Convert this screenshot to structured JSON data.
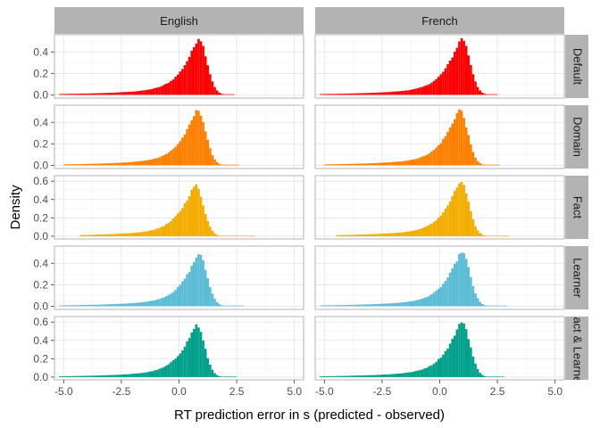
{
  "chart_data": {
    "type": "histogram-facets",
    "xlabel": "RT prediction error in s (predicted - observed)",
    "ylabel": "Density",
    "columns": [
      "English",
      "French"
    ],
    "rows": [
      "Default",
      "Domain",
      "Fact",
      "Learner",
      "Fact & Learner"
    ],
    "xlim": [
      -5.4,
      5.4
    ],
    "x_ticks": [
      -5.0,
      -2.5,
      0.0,
      2.5,
      5.0
    ],
    "x_tick_labels": [
      "-5.0",
      "-2.5",
      "0.0",
      "2.5",
      "5.0"
    ],
    "y_ticks_by_row": [
      {
        "values": [
          0.0,
          0.2,
          0.4
        ],
        "labels": [
          "0.0",
          "0.2",
          "0.4"
        ],
        "ylim": [
          -0.03,
          0.56
        ]
      },
      {
        "values": [
          0.0,
          0.2,
          0.4
        ],
        "labels": [
          "0.0",
          "0.2",
          "0.4"
        ],
        "ylim": [
          -0.03,
          0.56
        ]
      },
      {
        "values": [
          0.0,
          0.2,
          0.4,
          0.6
        ],
        "labels": [
          "0.0",
          "0.2",
          "0.4",
          "0.6"
        ],
        "ylim": [
          -0.03,
          0.66
        ]
      },
      {
        "values": [
          0.0,
          0.2,
          0.4
        ],
        "labels": [
          "0.0",
          "0.2",
          "0.4"
        ],
        "ylim": [
          -0.03,
          0.56
        ]
      },
      {
        "values": [
          0.0,
          0.2,
          0.4,
          0.6
        ],
        "labels": [
          "0.0",
          "0.2",
          "0.4",
          "0.6"
        ],
        "ylim": [
          -0.03,
          0.66
        ]
      }
    ],
    "row_colors": [
      "#FF0000",
      "#FF8000",
      "#F2AD00",
      "#5BBCD6",
      "#00A08A"
    ],
    "bin_width": 0.1,
    "bin_range": [
      -5.2,
      3.4
    ],
    "panels": [
      {
        "row": "Default",
        "column": "English",
        "peak_x": 0.85,
        "peak_density": 0.53,
        "x_min": -5.2,
        "x_max": 2.4
      },
      {
        "row": "Default",
        "column": "French",
        "peak_x": 0.95,
        "peak_density": 0.53,
        "x_min": -5.2,
        "x_max": 2.5
      },
      {
        "row": "Domain",
        "column": "English",
        "peak_x": 0.8,
        "peak_density": 0.52,
        "x_min": -5.0,
        "x_max": 2.6
      },
      {
        "row": "Domain",
        "column": "French",
        "peak_x": 0.85,
        "peak_density": 0.52,
        "x_min": -5.0,
        "x_max": 2.6
      },
      {
        "row": "Fact",
        "column": "English",
        "peak_x": 0.7,
        "peak_density": 0.56,
        "x_min": -4.3,
        "x_max": 3.3
      },
      {
        "row": "Fact",
        "column": "French",
        "peak_x": 0.9,
        "peak_density": 0.6,
        "x_min": -4.5,
        "x_max": 3.0
      },
      {
        "row": "Learner",
        "column": "English",
        "peak_x": 0.85,
        "peak_density": 0.49,
        "x_min": -5.2,
        "x_max": 2.8
      },
      {
        "row": "Learner",
        "column": "French",
        "peak_x": 0.95,
        "peak_density": 0.51,
        "x_min": -5.2,
        "x_max": 2.9
      },
      {
        "row": "Fact & Learner",
        "column": "English",
        "peak_x": 0.75,
        "peak_density": 0.57,
        "x_min": -5.2,
        "x_max": 2.5
      },
      {
        "row": "Fact & Learner",
        "column": "French",
        "peak_x": 0.95,
        "peak_density": 0.61,
        "x_min": -5.2,
        "x_max": 2.8
      }
    ],
    "grid": true,
    "legend": "none"
  }
}
